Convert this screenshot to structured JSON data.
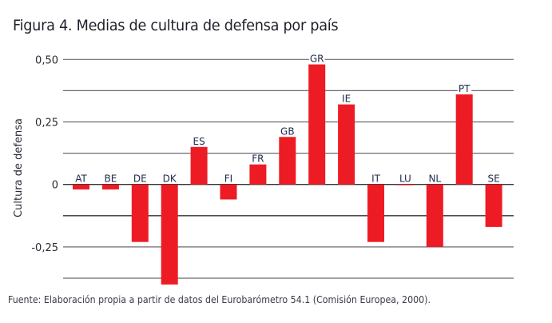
{
  "chart_data": {
    "type": "bar",
    "title": "Figura 4. Medias de cultura de defensa por país",
    "xlabel": "",
    "ylabel": "Cultura de defensa",
    "ylim": [
      -0.4,
      0.5
    ],
    "yticks": [
      0.5,
      0.25,
      0,
      -0.25
    ],
    "ytick_labels": [
      "0,50",
      "0,25",
      "0",
      "-0,25"
    ],
    "gridlines": [
      0.5,
      0.375,
      0.25,
      0.125,
      0,
      -0.125,
      -0.25,
      -0.375
    ],
    "grid": true,
    "legend": "none",
    "categories": [
      "AT",
      "BE",
      "DE",
      "DK",
      "ES",
      "FI",
      "FR",
      "GB",
      "GR",
      "IE",
      "IT",
      "LU",
      "NL",
      "PT",
      "SE"
    ],
    "values": [
      -0.02,
      -0.02,
      -0.23,
      -0.4,
      0.15,
      -0.06,
      0.08,
      0.19,
      0.48,
      0.32,
      -0.23,
      0.0,
      -0.25,
      0.36,
      -0.17
    ],
    "bar_color": "#ed1c24",
    "source": "Fuente: Elaboración propia a partir de datos del Eurobarómetro 54.1 (Comisión Europea, 2000)."
  }
}
